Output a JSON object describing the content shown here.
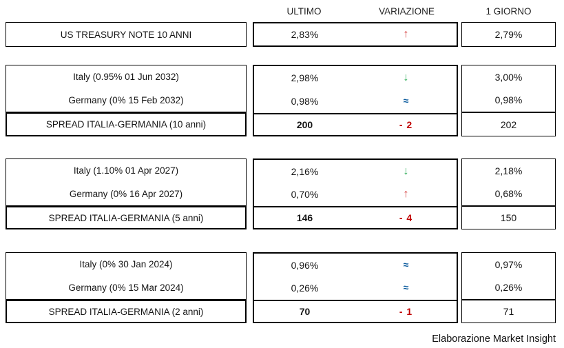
{
  "chart_data": {
    "type": "table",
    "columns": [
      "ULTIMO",
      "VARIAZIONE",
      "1 GIORNO"
    ],
    "sections": [
      {
        "name": "us-treasury",
        "rows": [
          {
            "label": "US TREASURY NOTE 10 ANNI",
            "ultimo": "2,83%",
            "variation": {
              "direction": "up"
            },
            "giorno": "2,79%"
          }
        ]
      },
      {
        "name": "spread-10-anni",
        "rows": [
          {
            "label": "Italy (0.95% 01 Jun 2032)",
            "ultimo": "2,98%",
            "variation": {
              "direction": "down"
            },
            "giorno": "3,00%"
          },
          {
            "label": "Germany (0% 15 Feb 2032)",
            "ultimo": "0,98%",
            "variation": {
              "direction": "flat"
            },
            "giorno": "0,98%"
          },
          {
            "label": "SPREAD ITALIA-GERMANIA (10 anni)",
            "ultimo": "200",
            "variation": {
              "direction": "delta",
              "value": "- 2"
            },
            "giorno": "202",
            "emphasis": true
          }
        ]
      },
      {
        "name": "spread-5-anni",
        "rows": [
          {
            "label": "Italy (1.10% 01 Apr 2027)",
            "ultimo": "2,16%",
            "variation": {
              "direction": "down"
            },
            "giorno": "2,18%"
          },
          {
            "label": "Germany (0% 16 Apr 2027)",
            "ultimo": "0,70%",
            "variation": {
              "direction": "up"
            },
            "giorno": "0,68%"
          },
          {
            "label": "SPREAD ITALIA-GERMANIA (5 anni)",
            "ultimo": "146",
            "variation": {
              "direction": "delta",
              "value": "- 4"
            },
            "giorno": "150",
            "emphasis": true
          }
        ]
      },
      {
        "name": "spread-2-anni",
        "rows": [
          {
            "label": "Italy (0% 30 Jan 2024)",
            "ultimo": "0,96%",
            "variation": {
              "direction": "flat"
            },
            "giorno": "0,97%"
          },
          {
            "label": "Germany (0% 15 Mar 2024)",
            "ultimo": "0,26%",
            "variation": {
              "direction": "flat"
            },
            "giorno": "0,26%"
          },
          {
            "label": "SPREAD ITALIA-GERMANIA (2 anni)",
            "ultimo": "70",
            "variation": {
              "direction": "delta",
              "value": "- 1"
            },
            "giorno": "71",
            "emphasis": true
          }
        ]
      }
    ]
  },
  "footer": {
    "credit": "Elaborazione Market Insight"
  },
  "colors": {
    "up": "#d02a2a",
    "down": "#28a953",
    "flat": "#0c5c9e",
    "delta": "#c00000"
  }
}
